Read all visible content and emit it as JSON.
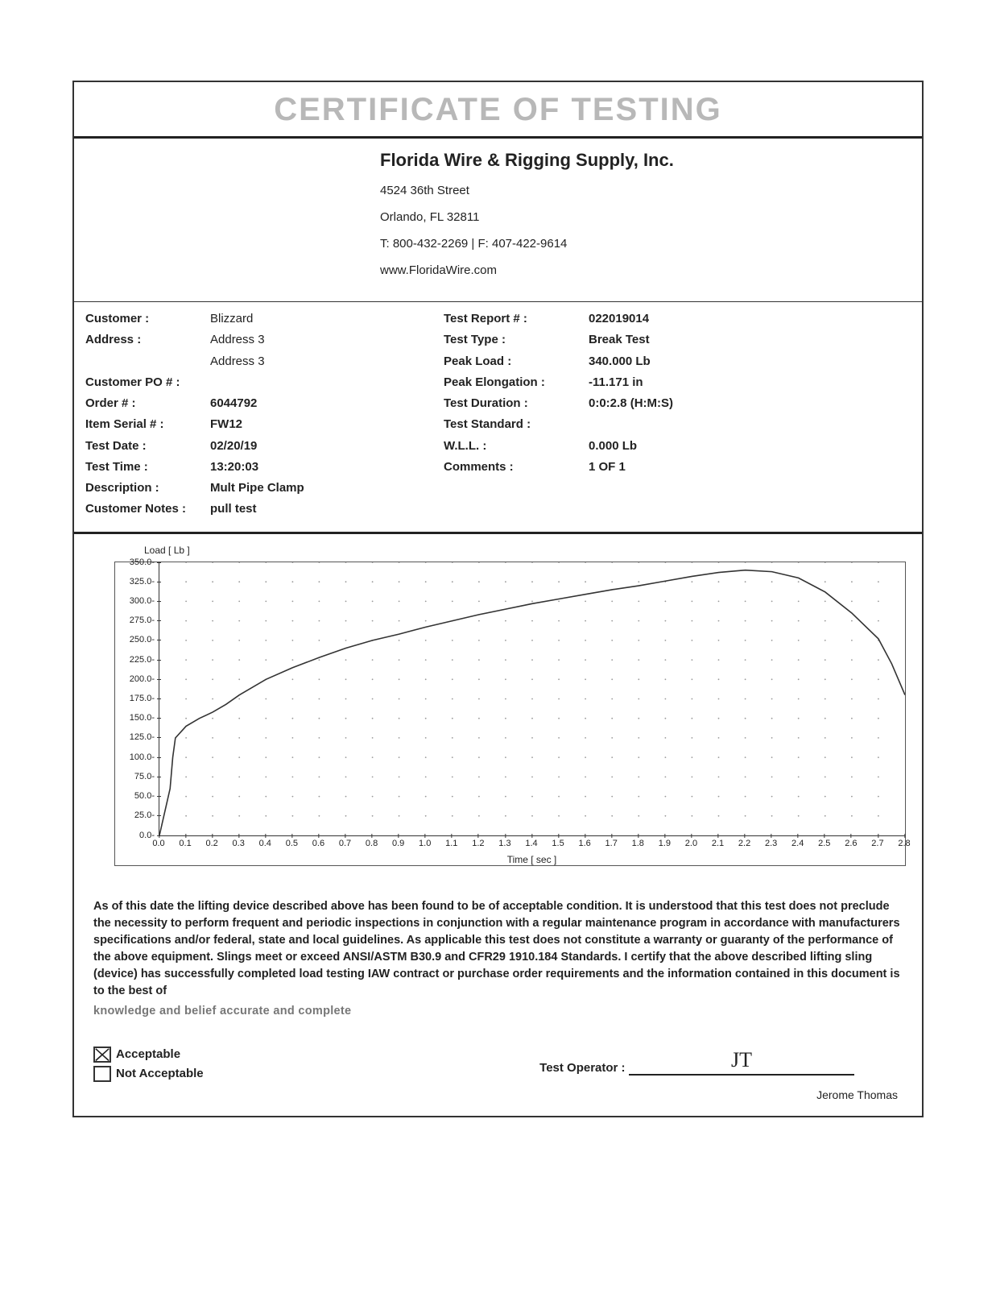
{
  "title": "CERTIFICATE OF TESTING",
  "company": {
    "name": "Florida Wire & Rigging Supply, Inc.",
    "street": "4524 36th Street",
    "city": "Orlando, FL  32811",
    "phone": "T: 800-432-2269  |  F: 407-422-9614",
    "web": "www.FloridaWire.com"
  },
  "left": {
    "labels": {
      "customer": "Customer :",
      "address": "Address :",
      "po": "Customer PO # :",
      "order": "Order # :",
      "serial": "Item Serial # :",
      "date": "Test Date :",
      "time": "Test Time :",
      "desc": "Description :",
      "notes": "Customer Notes :"
    },
    "values": {
      "customer": "Blizzard",
      "address1": "Address 3",
      "address2": "Address 3",
      "po": "",
      "order": "6044792",
      "serial": "FW12",
      "date": "02/20/19",
      "time": "13:20:03",
      "desc": "Mult  Pipe  Clamp",
      "notes": "pull test"
    }
  },
  "right": {
    "labels": {
      "report": "Test Report # :",
      "type": "Test Type :",
      "peak": "Peak Load :",
      "elong": "Peak Elongation :",
      "dur": "Test Duration :",
      "std": "Test Standard :",
      "wll": "W.L.L. :",
      "comments": "Comments :"
    },
    "values": {
      "report": "022019014",
      "type": "Break Test",
      "peak": "340.000 Lb",
      "elong": "-11.171 in",
      "dur": "0:0:2.8 (H:M:S)",
      "std": "",
      "wll": "0.000  Lb",
      "comments": "1 OF 1"
    }
  },
  "chart": {
    "y_label": "Load [ Lb ]",
    "x_label": "Time [ sec ]",
    "y_min": 0,
    "y_max": 350,
    "y_step": 25,
    "x_min": 0.0,
    "x_max": 2.8,
    "x_step": 0.1,
    "tick_fontsize": 11,
    "label_fontsize": 12,
    "grid_color": "#999999",
    "line_color": "#333333",
    "background": "#ffffff",
    "series": [
      {
        "x": 0.0,
        "y": 0
      },
      {
        "x": 0.02,
        "y": 30
      },
      {
        "x": 0.04,
        "y": 60
      },
      {
        "x": 0.05,
        "y": 100
      },
      {
        "x": 0.06,
        "y": 125
      },
      {
        "x": 0.1,
        "y": 140
      },
      {
        "x": 0.15,
        "y": 150
      },
      {
        "x": 0.2,
        "y": 158
      },
      {
        "x": 0.25,
        "y": 168
      },
      {
        "x": 0.3,
        "y": 180
      },
      {
        "x": 0.4,
        "y": 200
      },
      {
        "x": 0.5,
        "y": 215
      },
      {
        "x": 0.6,
        "y": 228
      },
      {
        "x": 0.7,
        "y": 240
      },
      {
        "x": 0.8,
        "y": 250
      },
      {
        "x": 0.9,
        "y": 258
      },
      {
        "x": 1.0,
        "y": 267
      },
      {
        "x": 1.1,
        "y": 275
      },
      {
        "x": 1.2,
        "y": 283
      },
      {
        "x": 1.3,
        "y": 290
      },
      {
        "x": 1.4,
        "y": 297
      },
      {
        "x": 1.5,
        "y": 303
      },
      {
        "x": 1.6,
        "y": 309
      },
      {
        "x": 1.7,
        "y": 315
      },
      {
        "x": 1.8,
        "y": 320
      },
      {
        "x": 1.9,
        "y": 326
      },
      {
        "x": 2.0,
        "y": 332
      },
      {
        "x": 2.1,
        "y": 337
      },
      {
        "x": 2.2,
        "y": 340
      },
      {
        "x": 2.3,
        "y": 338
      },
      {
        "x": 2.4,
        "y": 330
      },
      {
        "x": 2.5,
        "y": 312
      },
      {
        "x": 2.6,
        "y": 285
      },
      {
        "x": 2.7,
        "y": 252
      },
      {
        "x": 2.75,
        "y": 220
      },
      {
        "x": 2.8,
        "y": 180
      }
    ]
  },
  "disclaimer": "As of this date the lifting device described above has been found to be of acceptable condition. It is understood that this test does not preclude the necessity to perform frequent and periodic inspections in conjunction with a regular maintenance program in accordance with manufacturers specifications and/or federal, state and local guidelines.  As applicable this test does not constitute a warranty or guaranty of the performance of the above equipment.  Slings meet or exceed ANSI/ASTM B30.9 and CFR29 1910.184 Standards. I certify that the above described lifting sling (device) has successfully completed load testing IAW contract or purchase order requirements and the information contained in this document is to the best of",
  "disclaimer_cut": "knowledge and belief accurate and complete",
  "footer": {
    "acceptable": "Acceptable",
    "not_acceptable": "Not Acceptable",
    "acceptable_checked": true,
    "not_acceptable_checked": false,
    "operator_label": "Test Operator :",
    "signature": "JT",
    "operator_name": "Jerome Thomas"
  }
}
